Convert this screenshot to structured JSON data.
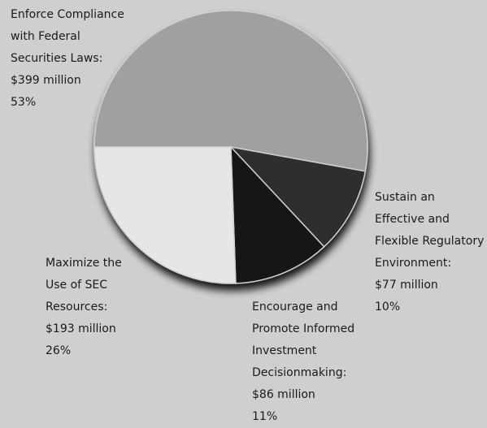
{
  "chart_data": {
    "type": "pie",
    "title": "",
    "start_angle_deg": 180,
    "direction": "clockwise",
    "slices": [
      {
        "lines": [
          "Enforce Compliance",
          "with Federal",
          "Securities Laws:",
          "$399 million",
          "53%"
        ],
        "value_millions": 399,
        "percent": 53,
        "color": "#a0a0a0"
      },
      {
        "lines": [
          "Sustain an",
          "Effective and",
          "Flexible Regulatory",
          "Environment:",
          "$77 million",
          "10%"
        ],
        "value_millions": 77,
        "percent": 10,
        "color": "#2f2f2f"
      },
      {
        "lines": [
          "Encourage and",
          "Promote Informed",
          "Investment",
          "Decisionmaking:",
          "$86 million",
          "11%"
        ],
        "value_millions": 86,
        "percent": 11,
        "color": "#141414"
      },
      {
        "lines": [
          "Maximize the",
          "Use of SEC",
          "Resources:",
          "$193 million",
          "26%"
        ],
        "value_millions": 193,
        "percent": 26,
        "color": "#e6e6e6"
      }
    ]
  }
}
